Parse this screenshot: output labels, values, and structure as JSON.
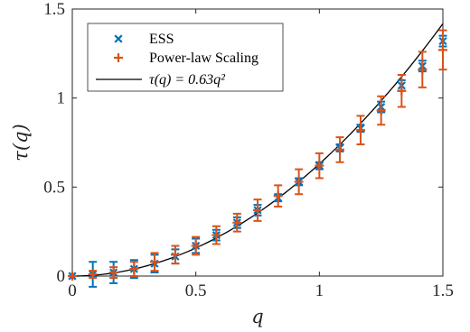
{
  "chart_data": {
    "type": "scatter",
    "title": "",
    "xlabel": "q",
    "ylabel": "τ(q)",
    "xlim": [
      0,
      1.5
    ],
    "ylim": [
      0,
      1.5
    ],
    "xticks": [
      0,
      0.5,
      1,
      1.5
    ],
    "yticks": [
      0,
      0.5,
      1,
      1.5
    ],
    "xtick_labels": [
      "0",
      "0.5",
      "1",
      "1.5"
    ],
    "ytick_labels": [
      "0",
      "0.5",
      "1",
      "1.5"
    ],
    "grid": false,
    "legend_position": "top-left",
    "series": [
      {
        "name": "ESS",
        "marker": "x",
        "color": "#0072BD",
        "x": [
          0,
          0.083,
          0.167,
          0.25,
          0.333,
          0.417,
          0.5,
          0.583,
          0.667,
          0.75,
          0.833,
          0.917,
          1.0,
          1.083,
          1.167,
          1.25,
          1.333,
          1.417,
          1.5
        ],
        "y": [
          0.0,
          0.01,
          0.02,
          0.04,
          0.07,
          0.11,
          0.17,
          0.23,
          0.3,
          0.37,
          0.44,
          0.53,
          0.62,
          0.72,
          0.83,
          0.95,
          1.07,
          1.18,
          1.32
        ],
        "err": [
          0.0,
          0.07,
          0.06,
          0.05,
          0.05,
          0.04,
          0.04,
          0.03,
          0.03,
          0.03,
          0.02,
          0.02,
          0.02,
          0.02,
          0.02,
          0.03,
          0.03,
          0.03,
          0.03
        ]
      },
      {
        "name": "Power-law Scaling",
        "marker": "+",
        "color": "#D95319",
        "x": [
          0,
          0.083,
          0.167,
          0.25,
          0.333,
          0.417,
          0.5,
          0.583,
          0.667,
          0.75,
          0.833,
          0.917,
          1.0,
          1.083,
          1.167,
          1.25,
          1.333,
          1.417,
          1.5
        ],
        "y": [
          0.0,
          0.01,
          0.02,
          0.04,
          0.08,
          0.12,
          0.17,
          0.23,
          0.3,
          0.37,
          0.45,
          0.53,
          0.62,
          0.71,
          0.82,
          0.93,
          1.04,
          1.16,
          1.27
        ],
        "err": [
          0.0,
          0.02,
          0.03,
          0.04,
          0.05,
          0.05,
          0.05,
          0.05,
          0.05,
          0.06,
          0.06,
          0.07,
          0.07,
          0.07,
          0.08,
          0.08,
          0.09,
          0.1,
          0.11
        ]
      },
      {
        "name": "τ(q) = 0.63q²",
        "type": "line",
        "color": "#000000",
        "coefficient": 0.63,
        "exponent": 2
      }
    ]
  }
}
